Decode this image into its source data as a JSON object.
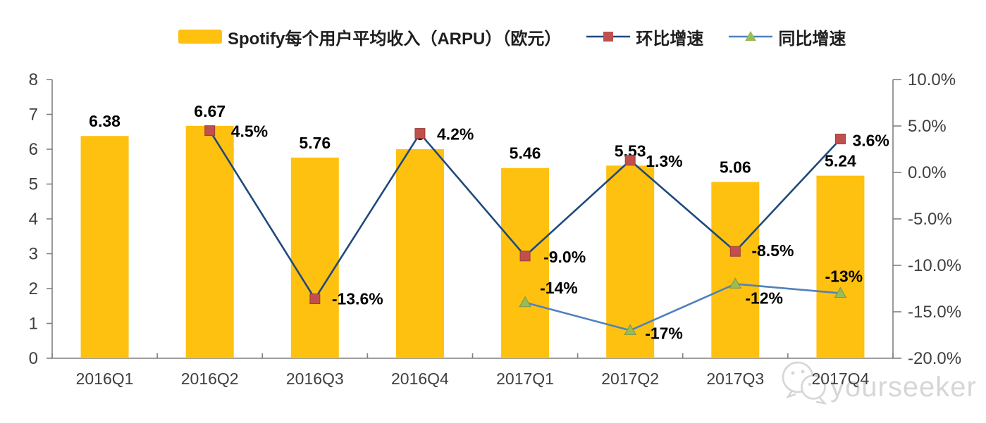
{
  "legend": {
    "items": [
      {
        "label": "Spotify每个用户平均收入（ARPU）（欧元）",
        "swatch": "bar",
        "color": "#FFC110"
      },
      {
        "label": "环比增速",
        "swatch": "line-square",
        "line_color": "#1F497D",
        "marker_color": "#C0504D"
      },
      {
        "label": "同比增速",
        "swatch": "line-triangle",
        "line_color": "#4F81BD",
        "marker_color": "#9BBB59"
      }
    ]
  },
  "chart_data": {
    "type": "bar",
    "title": "Spotify每个用户平均收入（ARPU）（欧元）",
    "categories": [
      "2016Q1",
      "2016Q2",
      "2016Q3",
      "2016Q4",
      "2017Q1",
      "2017Q2",
      "2017Q3",
      "2017Q4"
    ],
    "series": [
      {
        "name": "Spotify每个用户平均收入（ARPU）（欧元）",
        "type": "bar",
        "axis": "left",
        "color": "#FFC110",
        "values": [
          6.38,
          6.67,
          5.76,
          6.0,
          5.46,
          5.53,
          5.06,
          5.24
        ],
        "labels": [
          "6.38",
          "6.67",
          "5.76",
          "6",
          "5.46",
          "5.53",
          "5.06",
          "5.24"
        ]
      },
      {
        "name": "环比增速",
        "type": "line",
        "axis": "right",
        "color": "#1F497D",
        "marker": "square",
        "marker_color": "#C0504D",
        "marker_edge": "#9E3D39",
        "values": [
          null,
          4.5,
          -13.6,
          4.2,
          -9.0,
          1.3,
          -8.5,
          3.6
        ],
        "labels": [
          "",
          "4.5%",
          "-13.6%",
          "4.2%",
          "-9.0%",
          "1.3%",
          "-8.5%",
          "3.6%"
        ],
        "label_offsets": [
          [
            0,
            0
          ],
          [
            30,
            9
          ],
          [
            24,
            8
          ],
          [
            24,
            9
          ],
          [
            26,
            9
          ],
          [
            22,
            9
          ],
          [
            23,
            7
          ],
          [
            17,
            10
          ]
        ]
      },
      {
        "name": "同比增速",
        "type": "line",
        "axis": "right",
        "color": "#4F81BD",
        "marker": "triangle",
        "marker_color": "#9BBB59",
        "marker_edge": "#7A9646",
        "values": [
          null,
          null,
          null,
          null,
          -14,
          -17,
          -12,
          -13
        ],
        "labels": [
          "",
          "",
          "",
          "",
          "-14%",
          "-17%",
          "-12%",
          "-13%"
        ],
        "label_offsets": [
          [
            0,
            0
          ],
          [
            0,
            0
          ],
          [
            0,
            0
          ],
          [
            0,
            0
          ],
          [
            21,
            -13
          ],
          [
            21,
            12
          ],
          [
            14,
            28
          ],
          [
            -22,
            -16
          ]
        ]
      }
    ],
    "left_axis": {
      "min": 0,
      "max": 8,
      "step": 1,
      "tick_labels": [
        "0",
        "1",
        "2",
        "3",
        "4",
        "5",
        "6",
        "7",
        "8"
      ]
    },
    "right_axis": {
      "min": -20,
      "max": 10,
      "step": 5,
      "tick_labels": [
        "-20.0%",
        "-15.0%",
        "-10.0%",
        "-5.0%",
        "0.0%",
        "5.0%",
        "10.0%"
      ]
    },
    "grid": "off",
    "legend_position": "top",
    "axis_color": "#808080",
    "tick_text_color": "#3F3F3F",
    "data_label_color": "#000000"
  },
  "watermark": {
    "text": "yourseeker",
    "icon": "wechat-icon",
    "color": "#D6D6D6"
  }
}
